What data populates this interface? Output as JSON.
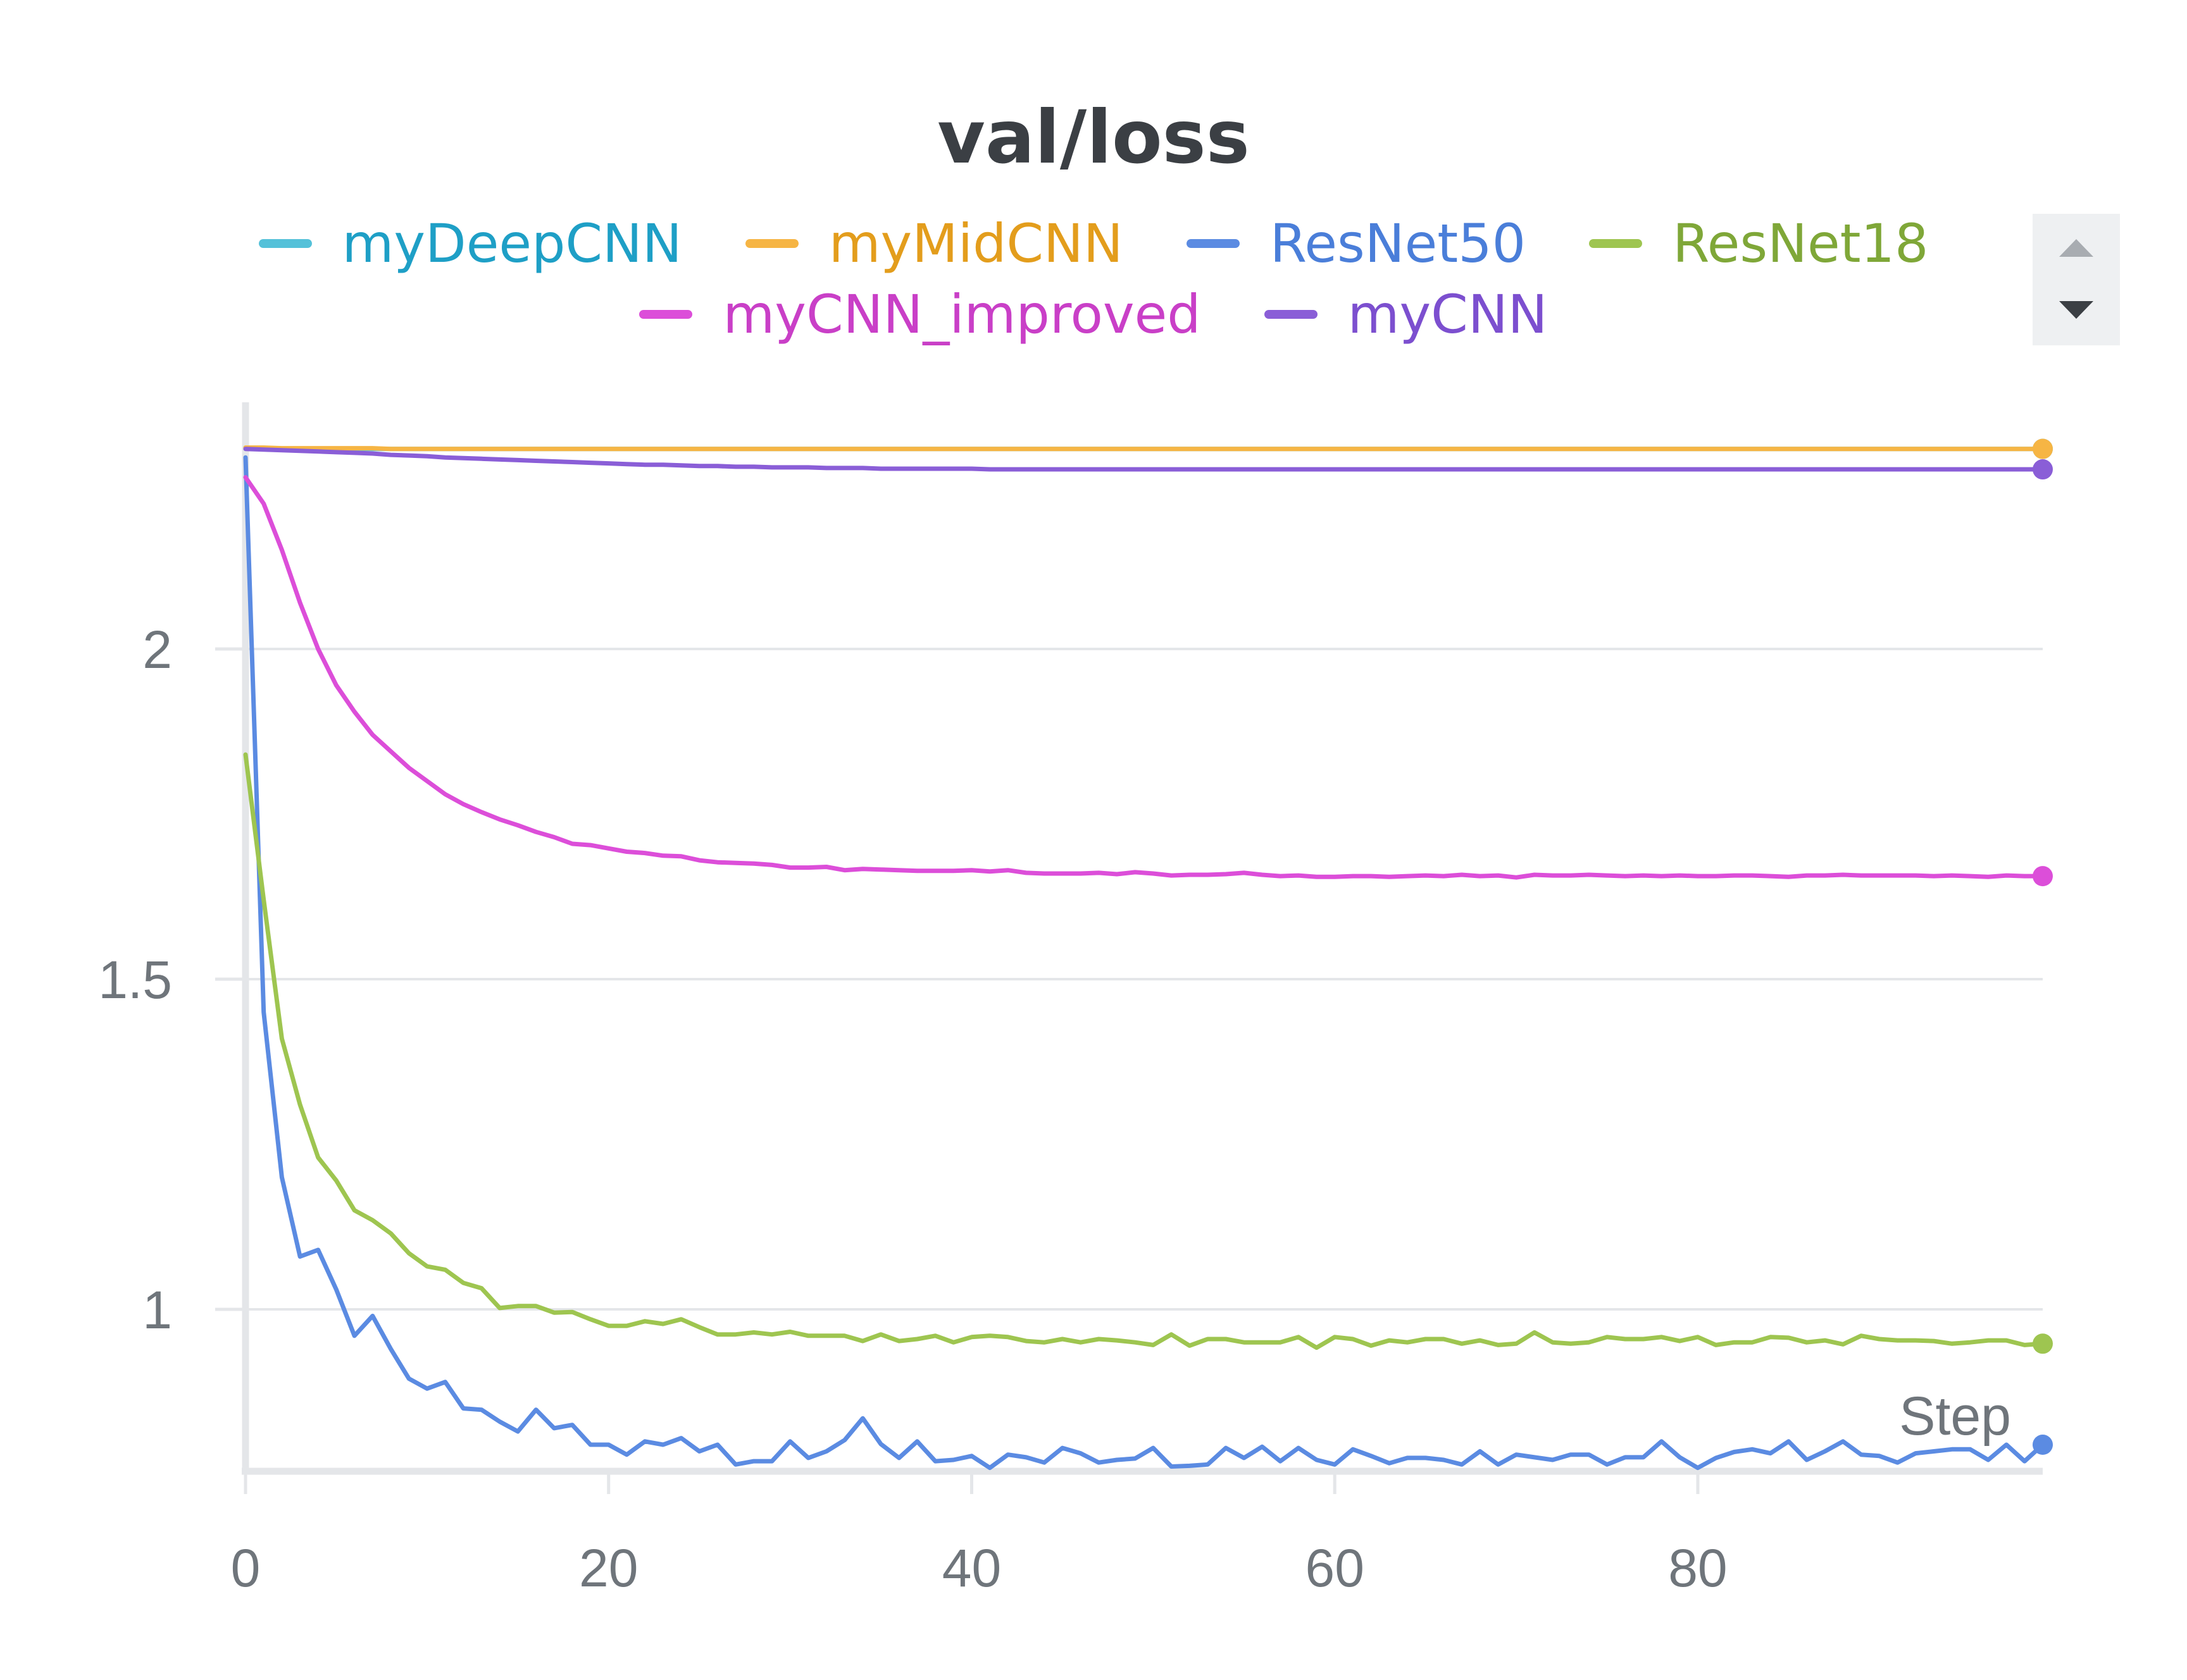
{
  "chart_data": {
    "type": "line",
    "title": "val/loss",
    "xlabel": "Step",
    "ylabel": "",
    "xlim": [
      0,
      99
    ],
    "ylim": [
      0.75,
      2.3
    ],
    "x_ticks": [
      0,
      20,
      40,
      60,
      80
    ],
    "y_ticks": [
      1,
      1.5,
      2
    ],
    "grid": true,
    "legend_position": "top",
    "series": [
      {
        "name": "myDeepCNN",
        "color": "#54c1d9",
        "text_color": "#1e9fc6",
        "values": [
          2.304,
          2.303,
          2.303,
          2.303,
          2.303,
          2.303,
          2.303,
          2.303,
          2.303,
          2.303,
          2.303,
          2.303,
          2.303,
          2.303,
          2.303,
          2.303,
          2.303,
          2.303,
          2.303,
          2.303,
          2.303,
          2.303,
          2.303,
          2.303,
          2.303,
          2.303,
          2.303,
          2.303,
          2.303,
          2.303,
          2.303,
          2.303,
          2.303,
          2.303,
          2.303,
          2.303,
          2.303,
          2.303,
          2.303,
          2.303,
          2.303,
          2.303,
          2.303,
          2.303,
          2.303,
          2.303,
          2.303,
          2.303,
          2.303,
          2.303,
          2.303,
          2.303,
          2.303,
          2.303,
          2.303,
          2.303,
          2.303,
          2.303,
          2.303,
          2.303,
          2.303,
          2.303,
          2.303,
          2.303,
          2.303,
          2.303,
          2.303,
          2.303,
          2.303,
          2.303,
          2.303,
          2.303,
          2.303,
          2.303,
          2.303,
          2.303,
          2.303,
          2.303,
          2.303,
          2.303,
          2.303,
          2.303,
          2.303,
          2.303,
          2.303,
          2.303,
          2.303,
          2.303,
          2.303,
          2.303,
          2.303,
          2.303,
          2.303,
          2.303,
          2.303,
          2.303,
          2.303,
          2.303,
          2.303,
          2.303
        ]
      },
      {
        "name": "myMidCNN",
        "color": "#f6b544",
        "text_color": "#e39d1c",
        "values": [
          2.305,
          2.305,
          2.304,
          2.304,
          2.304,
          2.304,
          2.304,
          2.304,
          2.303,
          2.303,
          2.303,
          2.303,
          2.303,
          2.303,
          2.303,
          2.303,
          2.303,
          2.303,
          2.303,
          2.303,
          2.303,
          2.303,
          2.303,
          2.303,
          2.303,
          2.303,
          2.303,
          2.303,
          2.303,
          2.303,
          2.303,
          2.303,
          2.303,
          2.303,
          2.303,
          2.303,
          2.303,
          2.303,
          2.303,
          2.303,
          2.303,
          2.303,
          2.303,
          2.303,
          2.303,
          2.303,
          2.303,
          2.303,
          2.303,
          2.303,
          2.303,
          2.303,
          2.303,
          2.303,
          2.303,
          2.303,
          2.303,
          2.303,
          2.303,
          2.303,
          2.303,
          2.303,
          2.303,
          2.303,
          2.303,
          2.303,
          2.303,
          2.303,
          2.303,
          2.303,
          2.303,
          2.303,
          2.303,
          2.303,
          2.303,
          2.303,
          2.303,
          2.303,
          2.303,
          2.303,
          2.303,
          2.303,
          2.303,
          2.303,
          2.303,
          2.303,
          2.303,
          2.303,
          2.303,
          2.303,
          2.303,
          2.303,
          2.303,
          2.303,
          2.303,
          2.303,
          2.303,
          2.303,
          2.303,
          2.303
        ]
      },
      {
        "name": "ResNet50",
        "color": "#5b8be2",
        "text_color": "#4a7ed9",
        "values": [
          2.29,
          1.45,
          1.2,
          1.08,
          1.09,
          1.03,
          0.96,
          0.99,
          0.94,
          0.895,
          0.88,
          0.89,
          0.85,
          0.848,
          0.83,
          0.815,
          0.848,
          0.82,
          0.825,
          0.795,
          0.795,
          0.78,
          0.8,
          0.795,
          0.805,
          0.785,
          0.795,
          0.765,
          0.77,
          0.77,
          0.8,
          0.775,
          0.785,
          0.802,
          0.835,
          0.796,
          0.775,
          0.8,
          0.77,
          0.772,
          0.778,
          0.76,
          0.78,
          0.776,
          0.768,
          0.79,
          0.782,
          0.768,
          0.772,
          0.774,
          0.79,
          0.762,
          0.763,
          0.765,
          0.79,
          0.775,
          0.792,
          0.77,
          0.79,
          0.772,
          0.765,
          0.788,
          0.778,
          0.767,
          0.775,
          0.775,
          0.772,
          0.765,
          0.785,
          0.765,
          0.78,
          0.776,
          0.772,
          0.78,
          0.78,
          0.765,
          0.776,
          0.776,
          0.8,
          0.776,
          0.76,
          0.775,
          0.784,
          0.788,
          0.782,
          0.8,
          0.772,
          0.785,
          0.8,
          0.78,
          0.778,
          0.768,
          0.782,
          0.785,
          0.788,
          0.788,
          0.772,
          0.795,
          0.77,
          0.795
        ]
      },
      {
        "name": "ResNet18",
        "color": "#9ec550",
        "text_color": "#7fa738",
        "values": [
          1.84,
          1.62,
          1.41,
          1.31,
          1.23,
          1.195,
          1.15,
          1.135,
          1.115,
          1.085,
          1.065,
          1.06,
          1.04,
          1.032,
          1.002,
          1.005,
          1.005,
          0.995,
          0.996,
          0.985,
          0.975,
          0.975,
          0.982,
          0.978,
          0.985,
          0.973,
          0.962,
          0.962,
          0.965,
          0.962,
          0.966,
          0.96,
          0.96,
          0.96,
          0.952,
          0.962,
          0.952,
          0.955,
          0.96,
          0.95,
          0.958,
          0.96,
          0.958,
          0.952,
          0.95,
          0.955,
          0.95,
          0.955,
          0.953,
          0.95,
          0.946,
          0.962,
          0.945,
          0.955,
          0.955,
          0.95,
          0.95,
          0.95,
          0.958,
          0.942,
          0.958,
          0.955,
          0.945,
          0.953,
          0.95,
          0.955,
          0.955,
          0.948,
          0.953,
          0.946,
          0.948,
          0.965,
          0.95,
          0.948,
          0.95,
          0.958,
          0.955,
          0.955,
          0.958,
          0.952,
          0.958,
          0.946,
          0.95,
          0.95,
          0.958,
          0.957,
          0.95,
          0.953,
          0.947,
          0.96,
          0.955,
          0.953,
          0.953,
          0.952,
          0.948,
          0.95,
          0.953,
          0.953,
          0.946,
          0.948
        ]
      },
      {
        "name": "myCNN_improved",
        "color": "#dc4ed9",
        "text_color": "#c93fc7",
        "values": [
          2.26,
          2.22,
          2.15,
          2.07,
          2.0,
          1.945,
          1.905,
          1.87,
          1.845,
          1.82,
          1.8,
          1.78,
          1.765,
          1.753,
          1.742,
          1.733,
          1.723,
          1.715,
          1.705,
          1.703,
          1.698,
          1.693,
          1.691,
          1.687,
          1.686,
          1.68,
          1.677,
          1.676,
          1.675,
          1.673,
          1.669,
          1.669,
          1.67,
          1.665,
          1.667,
          1.666,
          1.665,
          1.664,
          1.664,
          1.664,
          1.665,
          1.663,
          1.665,
          1.661,
          1.66,
          1.66,
          1.66,
          1.661,
          1.659,
          1.662,
          1.66,
          1.657,
          1.658,
          1.658,
          1.659,
          1.661,
          1.658,
          1.656,
          1.657,
          1.655,
          1.655,
          1.656,
          1.656,
          1.655,
          1.656,
          1.657,
          1.656,
          1.658,
          1.656,
          1.657,
          1.654,
          1.658,
          1.657,
          1.657,
          1.658,
          1.657,
          1.656,
          1.657,
          1.656,
          1.657,
          1.656,
          1.656,
          1.657,
          1.657,
          1.656,
          1.655,
          1.657,
          1.657,
          1.658,
          1.657,
          1.657,
          1.657,
          1.657,
          1.656,
          1.657,
          1.656,
          1.655,
          1.657,
          1.656,
          1.656
        ]
      },
      {
        "name": "myCNN",
        "color": "#8a5ed7",
        "text_color": "#7c4fcf",
        "values": [
          2.303,
          2.302,
          2.301,
          2.3,
          2.299,
          2.298,
          2.297,
          2.296,
          2.294,
          2.293,
          2.292,
          2.29,
          2.289,
          2.288,
          2.287,
          2.286,
          2.285,
          2.284,
          2.283,
          2.282,
          2.281,
          2.28,
          2.279,
          2.279,
          2.278,
          2.277,
          2.277,
          2.276,
          2.276,
          2.275,
          2.275,
          2.275,
          2.274,
          2.274,
          2.274,
          2.273,
          2.273,
          2.273,
          2.273,
          2.273,
          2.273,
          2.272,
          2.272,
          2.272,
          2.272,
          2.272,
          2.272,
          2.272,
          2.272,
          2.272,
          2.272,
          2.272,
          2.272,
          2.272,
          2.272,
          2.272,
          2.272,
          2.272,
          2.272,
          2.272,
          2.272,
          2.272,
          2.272,
          2.272,
          2.272,
          2.272,
          2.272,
          2.272,
          2.272,
          2.272,
          2.272,
          2.272,
          2.272,
          2.272,
          2.272,
          2.272,
          2.272,
          2.272,
          2.272,
          2.272,
          2.272,
          2.272,
          2.272,
          2.272,
          2.272,
          2.272,
          2.272,
          2.272,
          2.272,
          2.272,
          2.272,
          2.272,
          2.272,
          2.272,
          2.272,
          2.272,
          2.272,
          2.272,
          2.272,
          2.272
        ]
      }
    ]
  }
}
